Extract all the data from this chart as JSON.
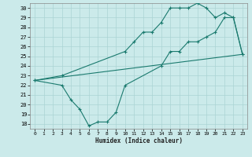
{
  "bg_color": "#cbeaea",
  "line_color": "#1a7a6e",
  "grid_color": "#aad4d4",
  "xlabel": "Humidex (Indice chaleur)",
  "xlim": [
    -0.5,
    23.5
  ],
  "ylim": [
    17.5,
    30.5
  ],
  "yticks": [
    18,
    19,
    20,
    21,
    22,
    23,
    24,
    25,
    26,
    27,
    28,
    29,
    30
  ],
  "xticks": [
    0,
    1,
    2,
    3,
    4,
    5,
    6,
    7,
    8,
    9,
    10,
    11,
    12,
    13,
    14,
    15,
    16,
    17,
    18,
    19,
    20,
    21,
    22,
    23
  ],
  "line1_x": [
    0,
    3,
    10,
    11,
    12,
    13,
    14,
    15,
    16,
    17,
    18,
    19,
    20,
    21,
    22,
    23
  ],
  "line1_y": [
    22.5,
    23.0,
    25.5,
    26.5,
    27.5,
    27.5,
    28.5,
    30.0,
    30.0,
    30.0,
    30.5,
    30.0,
    29.0,
    29.5,
    29.0,
    25.2
  ],
  "line2_x": [
    0,
    23
  ],
  "line2_y": [
    22.5,
    25.2
  ],
  "line3_x": [
    0,
    3,
    4,
    5,
    6,
    7,
    8,
    9,
    10,
    14,
    15,
    16,
    17,
    18,
    19,
    20,
    21,
    22,
    23
  ],
  "line3_y": [
    22.5,
    22.0,
    20.5,
    19.5,
    17.8,
    18.2,
    18.2,
    19.2,
    22.0,
    24.0,
    25.5,
    25.5,
    26.5,
    26.5,
    27.0,
    27.5,
    29.0,
    29.0,
    25.2
  ]
}
